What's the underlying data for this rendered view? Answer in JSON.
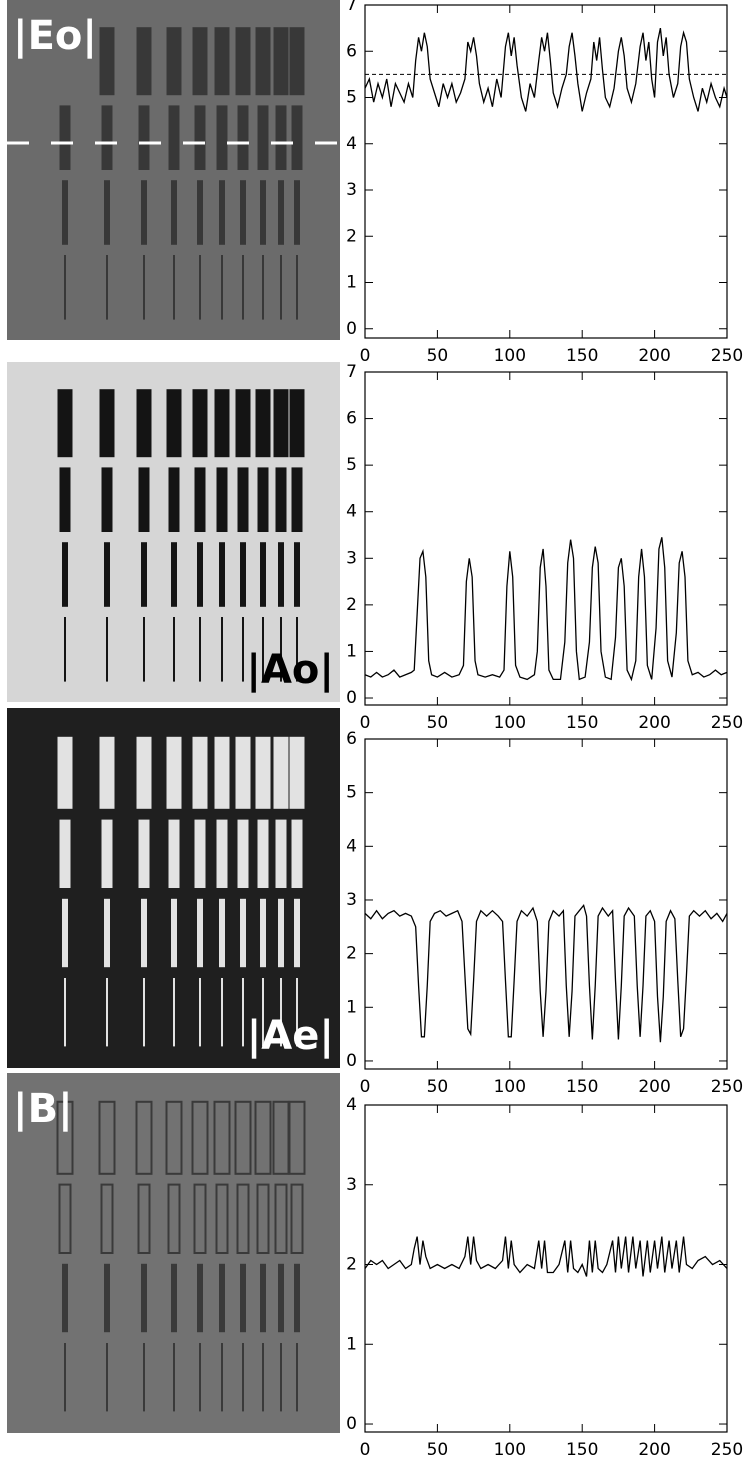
{
  "chart_data": [
    {
      "type": "line",
      "panel_label": "|Eo|",
      "color": "#000000",
      "xlim": [
        0,
        250
      ],
      "ylim": [
        -0.2,
        7
      ],
      "xticks": [
        0,
        50,
        100,
        150,
        200,
        250
      ],
      "yticks": [
        0,
        1,
        2,
        3,
        4,
        5,
        6,
        7
      ],
      "reference_line": 5.5,
      "x": [
        0,
        3,
        6,
        9,
        12,
        15,
        18,
        21,
        24,
        27,
        30,
        33,
        35,
        37,
        39,
        41,
        43,
        45,
        48,
        51,
        54,
        57,
        60,
        63,
        66,
        69,
        71,
        73,
        75,
        77,
        79,
        82,
        85,
        88,
        91,
        94,
        97,
        99,
        101,
        103,
        105,
        108,
        111,
        114,
        117,
        120,
        122,
        124,
        126,
        128,
        130,
        133,
        136,
        139,
        141,
        143,
        145,
        147,
        150,
        153,
        156,
        158,
        160,
        162,
        164,
        166,
        169,
        172,
        175,
        177,
        179,
        181,
        184,
        187,
        190,
        192,
        194,
        196,
        198,
        200,
        202,
        204,
        206,
        208,
        210,
        213,
        216,
        218,
        220,
        222,
        224,
        227,
        230,
        233,
        236,
        239,
        242,
        245,
        248,
        250
      ],
      "values": [
        5.2,
        5.4,
        4.9,
        5.3,
        5.0,
        5.4,
        4.8,
        5.3,
        5.1,
        4.9,
        5.3,
        5.0,
        5.8,
        6.3,
        6.0,
        6.4,
        6.1,
        5.4,
        5.1,
        4.8,
        5.3,
        5.0,
        5.3,
        4.9,
        5.1,
        5.4,
        6.2,
        6.0,
        6.3,
        5.9,
        5.3,
        4.9,
        5.2,
        4.8,
        5.4,
        5.0,
        6.1,
        6.4,
        5.9,
        6.3,
        5.7,
        5.0,
        4.7,
        5.3,
        5.0,
        5.8,
        6.3,
        6.0,
        6.4,
        5.8,
        5.1,
        4.8,
        5.2,
        5.5,
        6.1,
        6.4,
        5.9,
        5.3,
        4.7,
        5.1,
        5.4,
        6.2,
        5.8,
        6.3,
        5.6,
        5.0,
        4.8,
        5.2,
        6.0,
        6.3,
        5.9,
        5.2,
        4.9,
        5.3,
        6.1,
        6.4,
        5.8,
        6.2,
        5.4,
        5.0,
        6.2,
        6.5,
        5.9,
        6.3,
        5.5,
        5.0,
        5.3,
        6.1,
        6.4,
        6.2,
        5.4,
        5.0,
        4.7,
        5.2,
        4.9,
        5.3,
        5.0,
        4.8,
        5.2,
        5.0
      ]
    },
    {
      "type": "line",
      "panel_label": "|Ao|",
      "color": "#000000",
      "xlim": [
        0,
        250
      ],
      "ylim": [
        -0.15,
        7
      ],
      "xticks": [
        0,
        50,
        100,
        150,
        200,
        250
      ],
      "yticks": [
        0,
        1,
        2,
        3,
        4,
        5,
        6,
        7
      ],
      "x": [
        0,
        4,
        8,
        12,
        16,
        20,
        24,
        28,
        32,
        34,
        36,
        38,
        40,
        42,
        44,
        46,
        50,
        55,
        60,
        65,
        68,
        70,
        72,
        74,
        76,
        78,
        83,
        88,
        93,
        96,
        98,
        100,
        102,
        104,
        107,
        112,
        117,
        119,
        121,
        123,
        125,
        127,
        130,
        135,
        138,
        140,
        142,
        144,
        146,
        148,
        152,
        155,
        157,
        159,
        161,
        163,
        166,
        170,
        173,
        175,
        177,
        179,
        181,
        184,
        187,
        189,
        191,
        193,
        195,
        198,
        201,
        203,
        205,
        207,
        209,
        212,
        215,
        217,
        219,
        221,
        223,
        226,
        230,
        234,
        238,
        242,
        246,
        250
      ],
      "values": [
        0.5,
        0.45,
        0.55,
        0.45,
        0.5,
        0.6,
        0.45,
        0.5,
        0.55,
        0.6,
        1.8,
        3.0,
        3.15,
        2.6,
        0.8,
        0.5,
        0.45,
        0.55,
        0.45,
        0.5,
        0.7,
        2.5,
        3.0,
        2.6,
        0.8,
        0.5,
        0.45,
        0.5,
        0.45,
        0.6,
        2.4,
        3.15,
        2.6,
        0.7,
        0.45,
        0.4,
        0.5,
        1.0,
        2.8,
        3.2,
        2.4,
        0.6,
        0.4,
        0.4,
        1.2,
        2.9,
        3.4,
        3.0,
        1.0,
        0.4,
        0.45,
        1.2,
        2.8,
        3.25,
        2.9,
        1.0,
        0.45,
        0.4,
        1.3,
        2.8,
        3.0,
        2.4,
        0.6,
        0.4,
        0.8,
        2.6,
        3.2,
        2.6,
        0.7,
        0.4,
        1.5,
        3.2,
        3.45,
        2.8,
        0.8,
        0.45,
        1.4,
        2.9,
        3.15,
        2.6,
        0.8,
        0.5,
        0.55,
        0.45,
        0.5,
        0.6,
        0.5,
        0.55
      ]
    },
    {
      "type": "line",
      "panel_label": "|Ae|",
      "color": "#000000",
      "xlim": [
        0,
        250
      ],
      "ylim": [
        -0.15,
        6
      ],
      "xticks": [
        0,
        50,
        100,
        150,
        200,
        250
      ],
      "yticks": [
        0,
        1,
        2,
        3,
        4,
        5,
        6
      ],
      "x": [
        0,
        4,
        8,
        12,
        16,
        20,
        24,
        28,
        32,
        35,
        37,
        39,
        41,
        43,
        45,
        48,
        52,
        56,
        60,
        64,
        67,
        69,
        71,
        73,
        75,
        77,
        80,
        84,
        88,
        92,
        95,
        97,
        99,
        101,
        103,
        105,
        108,
        112,
        116,
        119,
        121,
        123,
        125,
        127,
        130,
        134,
        137,
        139,
        141,
        143,
        145,
        148,
        151,
        153,
        155,
        157,
        159,
        161,
        164,
        168,
        171,
        173,
        175,
        177,
        179,
        182,
        186,
        188,
        190,
        192,
        194,
        197,
        200,
        202,
        204,
        206,
        208,
        211,
        214,
        216,
        218,
        220,
        222,
        224,
        227,
        231,
        235,
        239,
        243,
        247,
        250
      ],
      "values": [
        2.75,
        2.65,
        2.8,
        2.65,
        2.75,
        2.8,
        2.7,
        2.75,
        2.7,
        2.5,
        1.4,
        0.45,
        0.45,
        1.4,
        2.6,
        2.75,
        2.8,
        2.7,
        2.75,
        2.8,
        2.6,
        1.6,
        0.6,
        0.5,
        1.5,
        2.6,
        2.8,
        2.7,
        2.8,
        2.7,
        2.6,
        1.5,
        0.45,
        0.45,
        1.5,
        2.6,
        2.8,
        2.7,
        2.85,
        2.6,
        1.3,
        0.45,
        1.3,
        2.6,
        2.8,
        2.7,
        2.8,
        1.4,
        0.45,
        1.3,
        2.7,
        2.8,
        2.9,
        2.7,
        1.4,
        0.4,
        1.4,
        2.7,
        2.85,
        2.7,
        2.8,
        1.5,
        0.4,
        1.4,
        2.7,
        2.85,
        2.7,
        1.4,
        0.45,
        1.4,
        2.7,
        2.8,
        2.6,
        1.2,
        0.35,
        1.2,
        2.6,
        2.8,
        2.65,
        1.5,
        0.45,
        0.6,
        1.6,
        2.7,
        2.8,
        2.7,
        2.8,
        2.65,
        2.75,
        2.6,
        2.75
      ]
    },
    {
      "type": "line",
      "panel_label": "|B|",
      "color": "#000000",
      "xlim": [
        0,
        250
      ],
      "ylim": [
        -0.1,
        4
      ],
      "xticks": [
        0,
        50,
        100,
        150,
        200,
        250
      ],
      "yticks": [
        0,
        1,
        2,
        3,
        4
      ],
      "x": [
        0,
        4,
        8,
        12,
        16,
        20,
        24,
        28,
        32,
        34,
        36,
        38,
        40,
        42,
        45,
        50,
        55,
        60,
        65,
        69,
        71,
        73,
        75,
        77,
        80,
        85,
        90,
        95,
        97,
        99,
        101,
        103,
        107,
        112,
        117,
        120,
        122,
        124,
        126,
        130,
        134,
        138,
        140,
        142,
        144,
        147,
        150,
        153,
        155,
        157,
        159,
        161,
        164,
        167,
        171,
        173,
        175,
        177,
        180,
        182,
        185,
        187,
        190,
        192,
        195,
        197,
        200,
        202,
        205,
        207,
        210,
        212,
        215,
        217,
        220,
        222,
        226,
        230,
        235,
        240,
        245,
        250
      ],
      "values": [
        1.95,
        2.05,
        2.0,
        2.05,
        1.95,
        2.0,
        2.05,
        1.95,
        2.0,
        2.2,
        2.35,
        2.0,
        2.3,
        2.1,
        1.95,
        2.0,
        1.95,
        2.0,
        1.95,
        2.1,
        2.35,
        2.0,
        2.35,
        2.05,
        1.95,
        2.0,
        1.95,
        2.05,
        2.35,
        1.95,
        2.3,
        2.0,
        1.9,
        2.0,
        1.95,
        2.3,
        1.95,
        2.3,
        1.9,
        1.9,
        2.0,
        2.3,
        1.9,
        2.3,
        1.95,
        1.9,
        2.0,
        1.85,
        2.3,
        1.9,
        2.3,
        1.95,
        1.9,
        2.0,
        2.3,
        1.9,
        2.35,
        1.95,
        2.35,
        1.9,
        2.35,
        1.95,
        2.3,
        1.85,
        2.3,
        1.9,
        2.3,
        1.95,
        2.35,
        1.9,
        2.3,
        1.95,
        2.3,
        1.9,
        2.35,
        2.0,
        1.95,
        2.05,
        2.1,
        2.0,
        2.05,
        1.95
      ]
    }
  ]
}
